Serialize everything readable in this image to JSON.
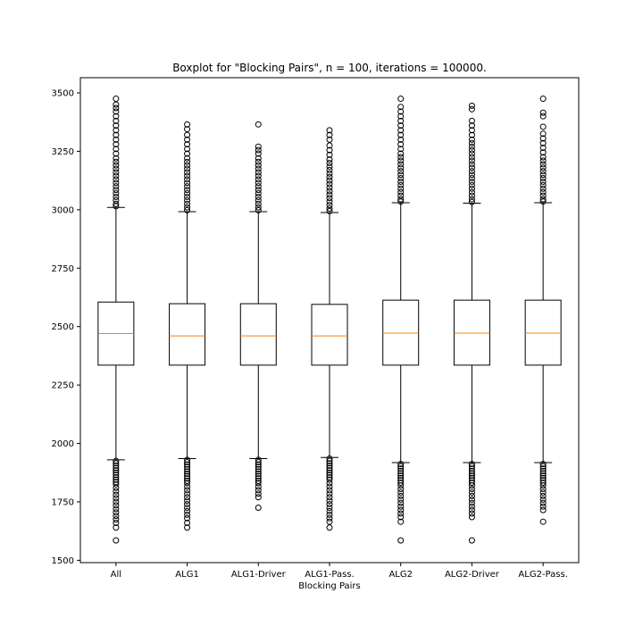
{
  "chart_data": {
    "type": "boxplot",
    "title": "Boxplot for \"Blocking Pairs\", n = 100, iterations = 100000.",
    "xlabel": "Blocking Pairs",
    "ylabel": "",
    "ylim": [
      1490,
      3565
    ],
    "yticks": [
      1500,
      1750,
      2000,
      2250,
      2500,
      2750,
      3000,
      3250,
      3500
    ],
    "ytick_labels": [
      "1500",
      "1750",
      "2000",
      "2250",
      "2500",
      "2750",
      "3000",
      "3250",
      "3500"
    ],
    "grid": false,
    "colors": {
      "box": "#000000",
      "median": "#ff7f0e",
      "background": "#ffffff"
    },
    "categories": [
      "All",
      "ALG1",
      "ALG1-Driver",
      "ALG1-Pass.",
      "ALG2",
      "ALG2-Driver",
      "ALG2-Pass."
    ],
    "boxes": [
      {
        "q1": 2335,
        "median": 2470,
        "q3": 2605,
        "whisker_low": 1930,
        "whisker_high": 3010,
        "outliers_high": [
          3015,
          3025,
          3040,
          3055,
          3070,
          3085,
          3100,
          3115,
          3130,
          3145,
          3160,
          3175,
          3190,
          3205,
          3220,
          3240,
          3260,
          3280,
          3300,
          3320,
          3340,
          3360,
          3380,
          3400,
          3420,
          3435,
          3450,
          3475
        ],
        "outliers_low": [
          1925,
          1915,
          1905,
          1895,
          1885,
          1875,
          1865,
          1855,
          1845,
          1835,
          1825,
          1810,
          1795,
          1780,
          1765,
          1750,
          1735,
          1720,
          1705,
          1690,
          1675,
          1660,
          1640,
          1585
        ]
      },
      {
        "q1": 2335,
        "median": 2460,
        "q3": 2598,
        "whisker_low": 1935,
        "whisker_high": 2992,
        "outliers_high": [
          2998,
          3010,
          3025,
          3040,
          3055,
          3070,
          3085,
          3100,
          3115,
          3130,
          3145,
          3160,
          3175,
          3190,
          3205,
          3220,
          3240,
          3260,
          3280,
          3300,
          3320,
          3345,
          3365
        ],
        "outliers_low": [
          1930,
          1920,
          1910,
          1900,
          1890,
          1880,
          1870,
          1860,
          1850,
          1840,
          1830,
          1815,
          1800,
          1785,
          1770,
          1755,
          1740,
          1725,
          1710,
          1695,
          1680,
          1660,
          1640
        ]
      },
      {
        "q1": 2335,
        "median": 2460,
        "q3": 2598,
        "whisker_low": 1935,
        "whisker_high": 2992,
        "outliers_high": [
          2998,
          3010,
          3025,
          3040,
          3055,
          3070,
          3085,
          3100,
          3115,
          3130,
          3145,
          3160,
          3175,
          3190,
          3205,
          3220,
          3240,
          3255,
          3270,
          3365
        ],
        "outliers_low": [
          1930,
          1920,
          1910,
          1900,
          1890,
          1880,
          1870,
          1860,
          1850,
          1840,
          1830,
          1815,
          1800,
          1785,
          1770,
          1725
        ]
      },
      {
        "q1": 2335,
        "median": 2460,
        "q3": 2595,
        "whisker_low": 1940,
        "whisker_high": 2988,
        "outliers_high": [
          2994,
          3005,
          3020,
          3035,
          3050,
          3065,
          3080,
          3095,
          3110,
          3125,
          3140,
          3155,
          3170,
          3185,
          3200,
          3215,
          3235,
          3255,
          3275,
          3300,
          3320,
          3340
        ],
        "outliers_low": [
          1935,
          1925,
          1915,
          1905,
          1895,
          1885,
          1875,
          1865,
          1855,
          1845,
          1830,
          1815,
          1800,
          1785,
          1770,
          1755,
          1740,
          1725,
          1710,
          1695,
          1680,
          1665,
          1640
        ]
      },
      {
        "q1": 2335,
        "median": 2472,
        "q3": 2613,
        "whisker_low": 1918,
        "whisker_high": 3030,
        "outliers_high": [
          3035,
          3045,
          3060,
          3075,
          3090,
          3105,
          3120,
          3135,
          3150,
          3165,
          3180,
          3195,
          3210,
          3225,
          3240,
          3260,
          3280,
          3300,
          3320,
          3340,
          3360,
          3380,
          3400,
          3420,
          3440,
          3475
        ],
        "outliers_low": [
          1912,
          1902,
          1892,
          1882,
          1872,
          1862,
          1852,
          1842,
          1832,
          1820,
          1805,
          1790,
          1775,
          1760,
          1745,
          1730,
          1715,
          1700,
          1685,
          1665,
          1585
        ]
      },
      {
        "q1": 2335,
        "median": 2472,
        "q3": 2613,
        "whisker_low": 1918,
        "whisker_high": 3028,
        "outliers_high": [
          3033,
          3045,
          3060,
          3075,
          3090,
          3105,
          3120,
          3135,
          3150,
          3165,
          3180,
          3195,
          3210,
          3225,
          3240,
          3255,
          3270,
          3285,
          3300,
          3320,
          3340,
          3360,
          3380,
          3430,
          3445
        ],
        "outliers_low": [
          1912,
          1902,
          1892,
          1882,
          1872,
          1862,
          1852,
          1842,
          1832,
          1820,
          1805,
          1790,
          1775,
          1760,
          1745,
          1730,
          1715,
          1700,
          1685,
          1585
        ]
      },
      {
        "q1": 2335,
        "median": 2472,
        "q3": 2613,
        "whisker_low": 1918,
        "whisker_high": 3030,
        "outliers_high": [
          3035,
          3045,
          3060,
          3075,
          3090,
          3105,
          3120,
          3135,
          3150,
          3165,
          3180,
          3195,
          3210,
          3225,
          3245,
          3265,
          3285,
          3305,
          3325,
          3355,
          3400,
          3415,
          3475
        ],
        "outliers_low": [
          1912,
          1902,
          1892,
          1882,
          1872,
          1862,
          1852,
          1842,
          1832,
          1820,
          1805,
          1790,
          1775,
          1760,
          1745,
          1730,
          1715,
          1665
        ]
      }
    ]
  }
}
